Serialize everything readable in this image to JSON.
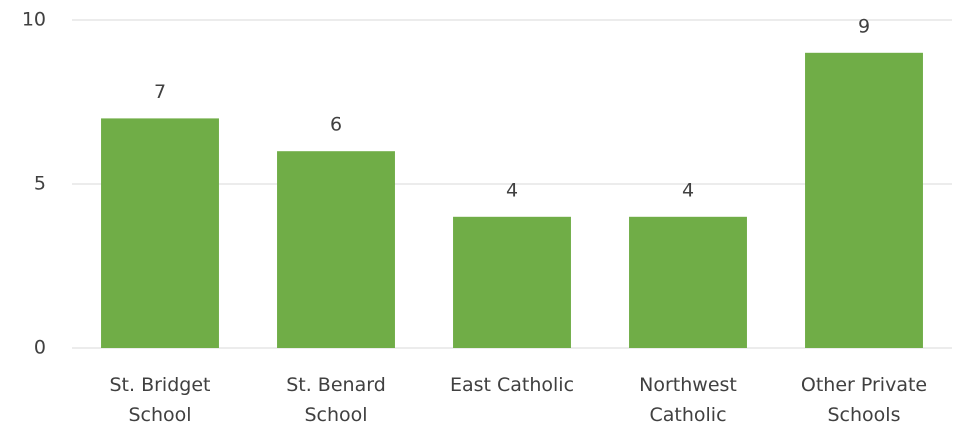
{
  "chart_data": {
    "type": "bar",
    "categories": [
      "St. Bridget School",
      "St. Benard School",
      "East Catholic",
      "Northwest Catholic",
      "Other Private Schools"
    ],
    "values": [
      7,
      6,
      4,
      4,
      9
    ],
    "color": "#70ad47",
    "ylim": [
      0,
      10
    ],
    "yticks": [
      0,
      5,
      10
    ],
    "grid": true
  }
}
